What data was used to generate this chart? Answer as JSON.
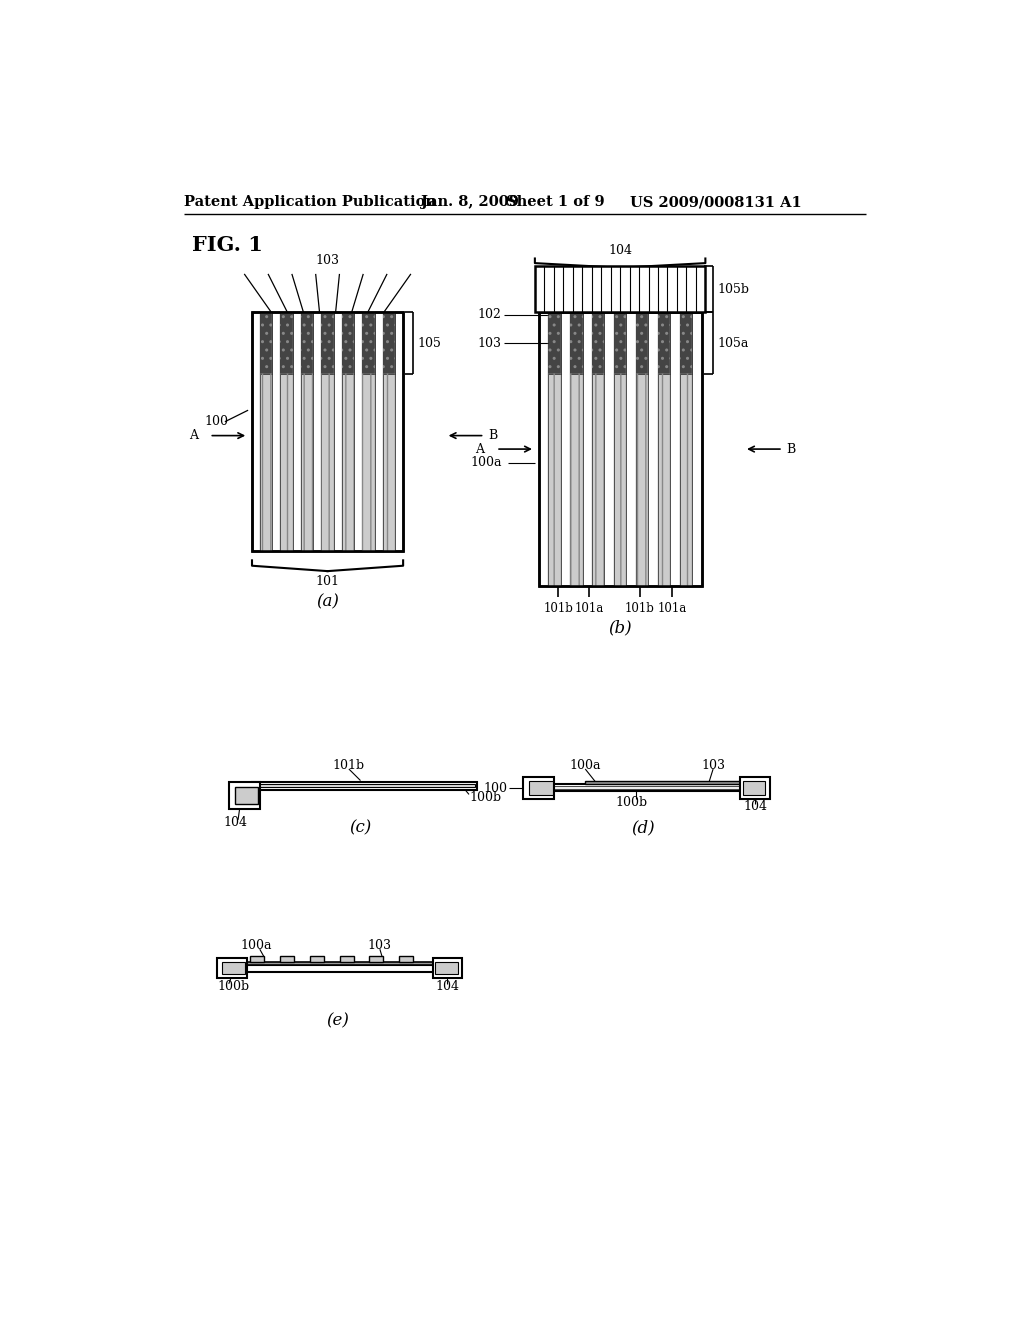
{
  "bg_color": "#ffffff",
  "header_text": "Patent Application Publication",
  "header_date": "Jan. 8, 2009",
  "header_sheet": "Sheet 1 of 9",
  "header_patent": "US 2009/0008131 A1",
  "fig_label": "FIG. 1"
}
